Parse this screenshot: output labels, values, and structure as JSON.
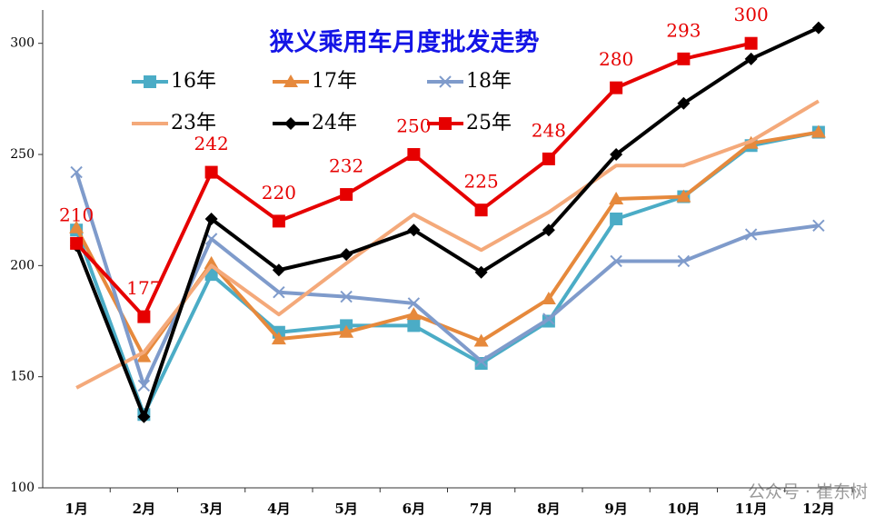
{
  "chart_data": {
    "type": "line",
    "title": "狭义乘用车月度批发走势",
    "watermark": "公众号 · 崔东树",
    "categories": [
      "1月",
      "2月",
      "3月",
      "4月",
      "5月",
      "6月",
      "7月",
      "8月",
      "9月",
      "10月",
      "11月",
      "12月"
    ],
    "ylim": [
      100,
      315
    ],
    "yticks": [
      100,
      150,
      200,
      250,
      300
    ],
    "grid": false,
    "series": [
      {
        "name": "16年",
        "color": "#4bacc6",
        "marker": "square",
        "values": [
          216,
          133,
          196,
          170,
          173,
          173,
          156,
          175,
          221,
          231,
          254,
          260
        ]
      },
      {
        "name": "17年",
        "color": "#e6893c",
        "marker": "triangle",
        "values": [
          217,
          159,
          201,
          167,
          170,
          178,
          166,
          185,
          230,
          231,
          255,
          260
        ]
      },
      {
        "name": "18年",
        "color": "#7f9bcb",
        "marker": "x",
        "values": [
          242,
          146,
          212,
          188,
          186,
          183,
          157,
          176,
          202,
          202,
          214,
          218
        ]
      },
      {
        "name": "23年",
        "color": "#f4a97a",
        "marker": "none",
        "values": [
          145,
          161,
          200,
          178,
          201,
          223,
          207,
          224,
          245,
          245,
          256,
          274
        ]
      },
      {
        "name": "24年",
        "color": "#000000",
        "marker": "diamond",
        "values": [
          209,
          132,
          221,
          198,
          205,
          216,
          197,
          216,
          250,
          273,
          293,
          307
        ]
      },
      {
        "name": "25年",
        "color": "#e60000",
        "marker": "square",
        "data_labels": true,
        "values": [
          210,
          177,
          242,
          220,
          232,
          250,
          225,
          248,
          280,
          293,
          300,
          null
        ]
      }
    ]
  }
}
